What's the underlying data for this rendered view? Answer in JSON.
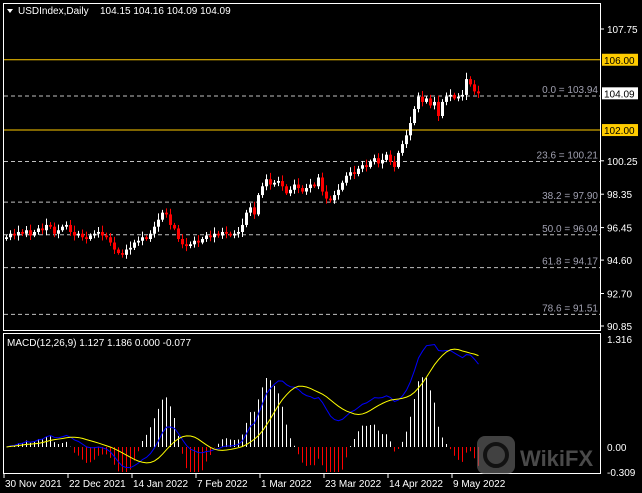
{
  "header": {
    "symbol": "USDIndex,Daily",
    "ohlc": "104.15 104.16 104.09 104.09"
  },
  "price_axis": {
    "ticks": [
      "107.75",
      "100.25",
      "98.35",
      "96.45",
      "94.60",
      "92.70",
      "90.85"
    ],
    "tick_values": [
      107.75,
      100.25,
      98.35,
      96.45,
      94.6,
      92.7,
      90.85
    ],
    "current_price": "104.09",
    "current_value": 104.09,
    "levels": [
      {
        "label": "106.00",
        "value": 106.0
      },
      {
        "label": "102.00",
        "value": 102.0
      }
    ]
  },
  "fibonacci": [
    {
      "label": "0.0 = 103.94",
      "value": 103.94
    },
    {
      "label": "23.6 = 100.21",
      "value": 100.21
    },
    {
      "label": "38.2 = 97.90",
      "value": 97.9
    },
    {
      "label": "50.0 = 96.04",
      "value": 96.04
    },
    {
      "label": "61.8 = 94.17",
      "value": 94.17
    },
    {
      "label": "78.6 = 91.51",
      "value": 91.51
    }
  ],
  "macd": {
    "title": "MACD(12,26,9) 1.127 1.186 0.000 -0.077",
    "ticks": [
      "1.316",
      "0.00",
      "-0.309"
    ],
    "range": [
      -0.309,
      1.316
    ]
  },
  "time_axis": {
    "labels": [
      {
        "label": "30 Nov 2021",
        "bar": 0
      },
      {
        "label": "22 Dec 2021",
        "bar": 16
      },
      {
        "label": "14 Jan 2022",
        "bar": 32
      },
      {
        "label": "7 Feb 2022",
        "bar": 48
      },
      {
        "label": "1 Mar 2022",
        "bar": 64
      },
      {
        "label": "23 Mar 2022",
        "bar": 80
      },
      {
        "label": "14 Apr 2022",
        "bar": 96
      },
      {
        "label": "9 May 2022",
        "bar": 112
      }
    ]
  },
  "watermark": "WikiFX",
  "colors": {
    "up": "#ffffff",
    "down": "#ff0000",
    "level": "#ffcc00",
    "macd": "#0000ff",
    "signal": "#ffff00",
    "fib": "#c0c0c0"
  },
  "chart_data": {
    "type": "candlestick",
    "ylim": [
      90.85,
      107.75
    ],
    "closes": [
      95.9,
      96.1,
      96.0,
      96.2,
      96.1,
      96.3,
      96.0,
      96.2,
      96.4,
      96.3,
      96.6,
      96.5,
      96.1,
      96.3,
      96.5,
      96.6,
      96.2,
      96.0,
      96.1,
      95.9,
      95.8,
      96.0,
      96.1,
      96.2,
      96.0,
      95.9,
      95.6,
      95.2,
      95.0,
      94.9,
      95.2,
      95.3,
      95.6,
      95.7,
      95.9,
      95.8,
      96.1,
      96.5,
      96.9,
      97.3,
      97.2,
      96.6,
      96.4,
      95.8,
      95.5,
      95.4,
      95.5,
      95.7,
      95.6,
      95.8,
      96.0,
      95.9,
      96.1,
      96.0,
      96.2,
      96.1,
      96.0,
      96.1,
      96.2,
      96.6,
      97.3,
      97.6,
      97.2,
      98.3,
      98.8,
      99.2,
      98.9,
      99.0,
      99.1,
      98.8,
      98.4,
      98.6,
      98.9,
      98.7,
      98.5,
      98.7,
      98.9,
      98.8,
      99.3,
      98.5,
      98.1,
      98.0,
      98.3,
      98.6,
      99.0,
      99.4,
      99.6,
      99.5,
      99.8,
      100.0,
      99.9,
      100.2,
      100.4,
      100.1,
      100.3,
      100.6,
      100.2,
      99.9,
      100.7,
      101.2,
      101.7,
      102.4,
      103.2,
      103.9,
      103.6,
      103.8,
      103.4,
      103.6,
      102.8,
      103.6,
      103.9,
      104.0,
      103.8,
      103.9,
      104.0,
      104.9,
      104.6,
      104.2,
      104.09
    ]
  }
}
